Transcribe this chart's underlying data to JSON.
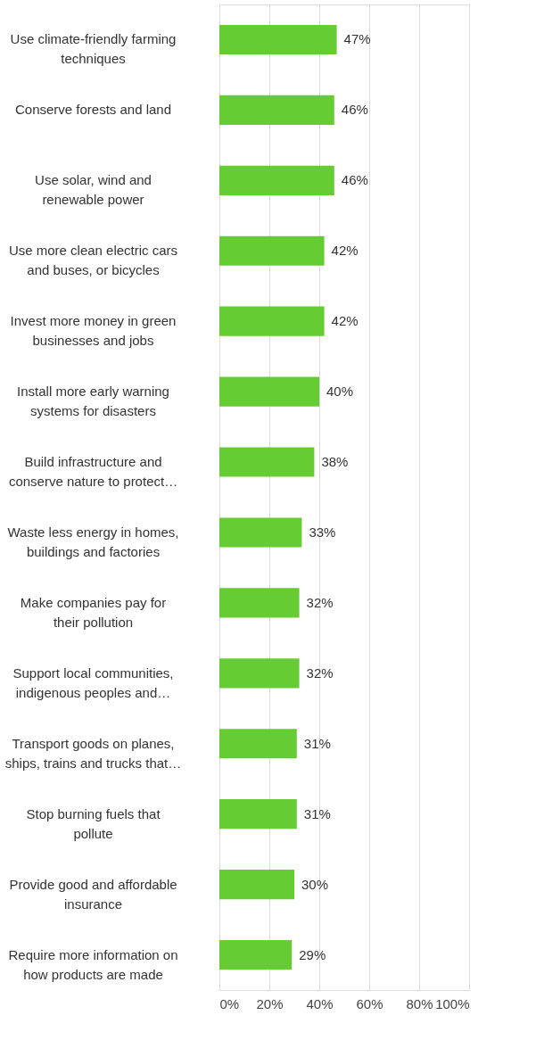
{
  "chart_data": {
    "type": "bar",
    "orientation": "horizontal",
    "categories": [
      "Use climate-friendly farming\ntechniques",
      "Conserve forests and land",
      "Use solar, wind and\nrenewable power",
      "Use more clean electric cars\nand buses, or bicycles",
      "Invest more money in green\nbusinesses and jobs",
      "Install more early warning\nsystems for disasters",
      "Build infrastructure and\nconserve nature to protect…",
      "Waste less energy in homes,\nbuildings and factories",
      "Make companies pay for\ntheir pollution",
      "Support local communities,\nindigenous peoples and…",
      "Transport goods on planes,\nships, trains and trucks that…",
      "Stop burning fuels that\npollute",
      "Provide good and affordable\ninsurance",
      "Require more information on\nhow products are made"
    ],
    "values": [
      47,
      46,
      46,
      42,
      42,
      40,
      38,
      33,
      32,
      32,
      31,
      31,
      30,
      29
    ],
    "value_labels": [
      "47%",
      "46%",
      "46%",
      "42%",
      "42%",
      "40%",
      "38%",
      "33%",
      "32%",
      "32%",
      "31%",
      "31%",
      "30%",
      "29%"
    ],
    "color": "#66cc33",
    "xlim": [
      0,
      100
    ],
    "xticks": [
      {
        "value": 0,
        "label": "0%"
      },
      {
        "value": 20,
        "label": "20%"
      },
      {
        "value": 40,
        "label": "40%"
      },
      {
        "value": 60,
        "label": "60%"
      },
      {
        "value": 80,
        "label": "80%"
      },
      {
        "value": 100,
        "label": "100%"
      }
    ],
    "grid": "x"
  }
}
